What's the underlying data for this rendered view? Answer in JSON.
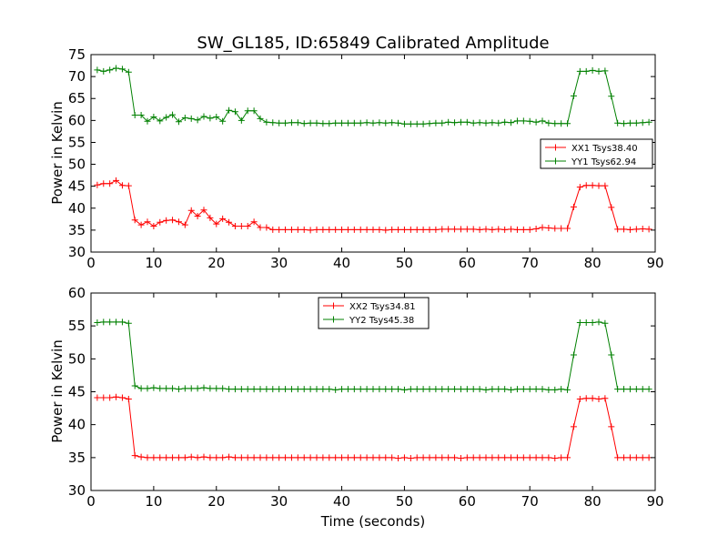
{
  "chart_data": {
    "title": "SW_GL185, ID:65849 Calibrated Amplitude",
    "xlabel": "Time (seconds)",
    "panels": [
      {
        "type": "line",
        "ylabel": "Power in Kelvin",
        "xlim": [
          0,
          90
        ],
        "ylim": [
          30,
          75
        ],
        "xticks": [
          "0",
          "10",
          "20",
          "30",
          "40",
          "50",
          "60",
          "70",
          "80",
          "90"
        ],
        "yticks": [
          "30",
          "35",
          "40",
          "45",
          "50",
          "55",
          "60",
          "65",
          "70",
          "75"
        ],
        "legend_position": "right",
        "series": [
          {
            "name": "XX1 Tsys38.40",
            "color": "#ff0000",
            "x": [
              1,
              2,
              3,
              4,
              5,
              6,
              7,
              8,
              9,
              10,
              11,
              12,
              13,
              14,
              15,
              16,
              17,
              18,
              19,
              20,
              21,
              22,
              23,
              24,
              25,
              26,
              27,
              28,
              29,
              30,
              31,
              32,
              33,
              34,
              35,
              36,
              37,
              38,
              39,
              40,
              41,
              42,
              43,
              44,
              45,
              46,
              47,
              48,
              49,
              50,
              51,
              52,
              53,
              54,
              55,
              56,
              57,
              58,
              59,
              60,
              61,
              62,
              63,
              64,
              65,
              66,
              67,
              68,
              69,
              70,
              71,
              72,
              73,
              74,
              75,
              76,
              77,
              78,
              79,
              80,
              81,
              82,
              83,
              84,
              85,
              86,
              87,
              88,
              89
            ],
            "y": [
              45.3,
              45.6,
              45.6,
              46.3,
              45.2,
              45.1,
              37.3,
              36.2,
              36.9,
              35.9,
              36.8,
              37.2,
              37.3,
              36.9,
              36.2,
              39.5,
              38.2,
              39.6,
              37.8,
              36.4,
              37.6,
              36.8,
              35.9,
              35.9,
              35.9,
              36.9,
              35.6,
              35.6,
              35.1,
              35.1,
              35.1,
              35.1,
              35.1,
              35.1,
              35.0,
              35.1,
              35.1,
              35.1,
              35.1,
              35.1,
              35.1,
              35.1,
              35.1,
              35.1,
              35.1,
              35.1,
              35.0,
              35.1,
              35.1,
              35.1,
              35.1,
              35.1,
              35.1,
              35.1,
              35.1,
              35.2,
              35.2,
              35.2,
              35.2,
              35.2,
              35.2,
              35.1,
              35.2,
              35.1,
              35.2,
              35.1,
              35.2,
              35.1,
              35.1,
              35.1,
              35.3,
              35.6,
              35.5,
              35.4,
              35.4,
              35.4,
              40.3,
              44.8,
              45.2,
              45.2,
              45.1,
              45.1,
              40.2,
              35.2,
              35.2,
              35.1,
              35.2,
              35.3,
              35.2
            ]
          },
          {
            "name": "YY1 Tsys62.94",
            "color": "#008000",
            "x": [
              1,
              2,
              3,
              4,
              5,
              6,
              7,
              8,
              9,
              10,
              11,
              12,
              13,
              14,
              15,
              16,
              17,
              18,
              19,
              20,
              21,
              22,
              23,
              24,
              25,
              26,
              27,
              28,
              29,
              30,
              31,
              32,
              33,
              34,
              35,
              36,
              37,
              38,
              39,
              40,
              41,
              42,
              43,
              44,
              45,
              46,
              47,
              48,
              49,
              50,
              51,
              52,
              53,
              54,
              55,
              56,
              57,
              58,
              59,
              60,
              61,
              62,
              63,
              64,
              65,
              66,
              67,
              68,
              69,
              70,
              71,
              72,
              73,
              74,
              75,
              76,
              77,
              78,
              79,
              80,
              81,
              82,
              83,
              84,
              85,
              86,
              87,
              88,
              89
            ],
            "y": [
              71.5,
              71.2,
              71.5,
              71.9,
              71.7,
              71.0,
              61.2,
              61.2,
              59.8,
              60.8,
              59.9,
              60.7,
              61.3,
              59.7,
              60.6,
              60.4,
              60.1,
              60.9,
              60.5,
              60.8,
              59.8,
              62.3,
              62.0,
              60.0,
              62.2,
              62.2,
              60.4,
              59.6,
              59.5,
              59.4,
              59.4,
              59.5,
              59.5,
              59.3,
              59.4,
              59.4,
              59.3,
              59.3,
              59.4,
              59.4,
              59.4,
              59.4,
              59.4,
              59.5,
              59.4,
              59.5,
              59.4,
              59.5,
              59.4,
              59.2,
              59.2,
              59.2,
              59.2,
              59.3,
              59.4,
              59.4,
              59.6,
              59.5,
              59.6,
              59.6,
              59.4,
              59.5,
              59.4,
              59.5,
              59.4,
              59.6,
              59.5,
              59.9,
              59.9,
              59.8,
              59.6,
              59.9,
              59.4,
              59.3,
              59.3,
              59.3,
              65.6,
              71.2,
              71.2,
              71.4,
              71.2,
              71.3,
              65.5,
              59.4,
              59.3,
              59.4,
              59.4,
              59.5,
              59.6
            ]
          }
        ]
      },
      {
        "type": "line",
        "ylabel": "Power in Kelvin",
        "xlim": [
          0,
          90
        ],
        "ylim": [
          30,
          60
        ],
        "xticks": [
          "0",
          "10",
          "20",
          "30",
          "40",
          "50",
          "60",
          "70",
          "80",
          "90"
        ],
        "yticks": [
          "30",
          "35",
          "40",
          "45",
          "50",
          "55",
          "60"
        ],
        "legend_position": "upper center",
        "series": [
          {
            "name": "XX2 Tsys34.81",
            "color": "#ff0000",
            "x": [
              1,
              2,
              3,
              4,
              5,
              6,
              7,
              8,
              9,
              10,
              11,
              12,
              13,
              14,
              15,
              16,
              17,
              18,
              19,
              20,
              21,
              22,
              23,
              24,
              25,
              26,
              27,
              28,
              29,
              30,
              31,
              32,
              33,
              34,
              35,
              36,
              37,
              38,
              39,
              40,
              41,
              42,
              43,
              44,
              45,
              46,
              47,
              48,
              49,
              50,
              51,
              52,
              53,
              54,
              55,
              56,
              57,
              58,
              59,
              60,
              61,
              62,
              63,
              64,
              65,
              66,
              67,
              68,
              69,
              70,
              71,
              72,
              73,
              74,
              75,
              76,
              77,
              78,
              79,
              80,
              81,
              82,
              83,
              84,
              85,
              86,
              87,
              88,
              89
            ],
            "y": [
              44.1,
              44.1,
              44.1,
              44.2,
              44.1,
              43.9,
              35.3,
              35.1,
              35.0,
              35.0,
              35.0,
              35.0,
              35.0,
              35.0,
              35.0,
              35.1,
              35.0,
              35.1,
              35.0,
              35.0,
              35.0,
              35.1,
              35.0,
              35.0,
              35.0,
              35.0,
              35.0,
              35.0,
              35.0,
              35.0,
              35.0,
              35.0,
              35.0,
              35.0,
              35.0,
              35.0,
              35.0,
              35.0,
              35.0,
              35.0,
              35.0,
              35.0,
              35.0,
              35.0,
              35.0,
              35.0,
              35.0,
              35.0,
              34.9,
              35.0,
              34.9,
              35.0,
              35.0,
              35.0,
              35.0,
              35.0,
              35.0,
              35.0,
              34.9,
              35.0,
              35.0,
              35.0,
              35.0,
              35.0,
              35.0,
              35.0,
              35.0,
              35.0,
              35.0,
              35.0,
              35.0,
              35.0,
              35.0,
              34.9,
              35.0,
              35.0,
              39.7,
              43.9,
              44.0,
              44.0,
              43.9,
              44.0,
              39.7,
              35.0,
              35.0,
              35.0,
              35.0,
              35.0,
              35.0
            ]
          },
          {
            "name": "YY2 Tsys45.38",
            "color": "#008000",
            "x": [
              1,
              2,
              3,
              4,
              5,
              6,
              7,
              8,
              9,
              10,
              11,
              12,
              13,
              14,
              15,
              16,
              17,
              18,
              19,
              20,
              21,
              22,
              23,
              24,
              25,
              26,
              27,
              28,
              29,
              30,
              31,
              32,
              33,
              34,
              35,
              36,
              37,
              38,
              39,
              40,
              41,
              42,
              43,
              44,
              45,
              46,
              47,
              48,
              49,
              50,
              51,
              52,
              53,
              54,
              55,
              56,
              57,
              58,
              59,
              60,
              61,
              62,
              63,
              64,
              65,
              66,
              67,
              68,
              69,
              70,
              71,
              72,
              73,
              74,
              75,
              76,
              77,
              78,
              79,
              80,
              81,
              82,
              83,
              84,
              85,
              86,
              87,
              88,
              89
            ],
            "y": [
              55.5,
              55.6,
              55.6,
              55.6,
              55.6,
              55.4,
              45.9,
              45.5,
              45.5,
              45.6,
              45.5,
              45.5,
              45.5,
              45.4,
              45.5,
              45.5,
              45.5,
              45.6,
              45.5,
              45.5,
              45.5,
              45.4,
              45.4,
              45.4,
              45.4,
              45.4,
              45.4,
              45.4,
              45.4,
              45.4,
              45.4,
              45.4,
              45.4,
              45.4,
              45.4,
              45.4,
              45.4,
              45.4,
              45.3,
              45.4,
              45.4,
              45.4,
              45.4,
              45.4,
              45.4,
              45.4,
              45.4,
              45.4,
              45.4,
              45.3,
              45.4,
              45.4,
              45.4,
              45.4,
              45.4,
              45.4,
              45.4,
              45.4,
              45.4,
              45.4,
              45.4,
              45.4,
              45.3,
              45.4,
              45.4,
              45.4,
              45.3,
              45.4,
              45.4,
              45.4,
              45.4,
              45.4,
              45.3,
              45.3,
              45.4,
              45.3,
              50.6,
              55.5,
              55.5,
              55.5,
              55.6,
              55.4,
              50.6,
              45.4,
              45.4,
              45.4,
              45.4,
              45.4,
              45.4
            ]
          }
        ]
      }
    ]
  }
}
